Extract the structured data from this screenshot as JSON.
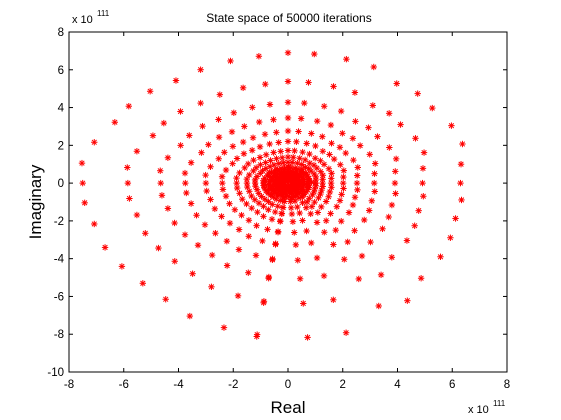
{
  "chart_data": {
    "type": "scatter",
    "title": "State space of 50000 iterations",
    "xlabel": "Real",
    "ylabel": "Imaginary",
    "x_multiplier": {
      "base": "x 10",
      "exponent": "111"
    },
    "y_multiplier": {
      "base": "x 10",
      "exponent": "111"
    },
    "xlim": [
      -8,
      8
    ],
    "ylim": [
      -10,
      8
    ],
    "xticks": [
      "-8",
      "-6",
      "-4",
      "-2",
      "0",
      "2",
      "4",
      "6",
      "8"
    ],
    "yticks": [
      "-10",
      "-8",
      "-6",
      "-4",
      "-2",
      "0",
      "2",
      "4",
      "6",
      "8"
    ],
    "grid": false,
    "marker": "asterisk",
    "marker_color": "#ff0000",
    "pattern": {
      "description_rays": 40,
      "ray_angles_deg": [
        -98,
        -85,
        -75,
        -63,
        -55,
        -46,
        -35,
        -26,
        -17,
        -8,
        0,
        9,
        18,
        27,
        37,
        45,
        53,
        63,
        72,
        82,
        90,
        99,
        108,
        118,
        127,
        136,
        145,
        153,
        163,
        172,
        180,
        188,
        197,
        207,
        216,
        225,
        234,
        243,
        253,
        262
      ],
      "ray_max_radius": [
        8.2,
        8.2,
        8.2,
        7.3,
        7.6,
        7.0,
        6.8,
        6.6,
        6.4,
        6.4,
        6.3,
        6.4,
        6.7,
        6.7,
        6.6,
        6.7,
        6.6,
        6.9,
        6.9,
        6.9,
        6.9,
        6.8,
        6.8,
        6.8,
        6.8,
        7.0,
        7.1,
        7.1,
        7.4,
        7.6,
        7.5,
        7.5,
        7.4,
        7.5,
        7.5,
        7.5,
        7.6,
        7.9,
        8.0,
        8.1
      ]
    }
  }
}
